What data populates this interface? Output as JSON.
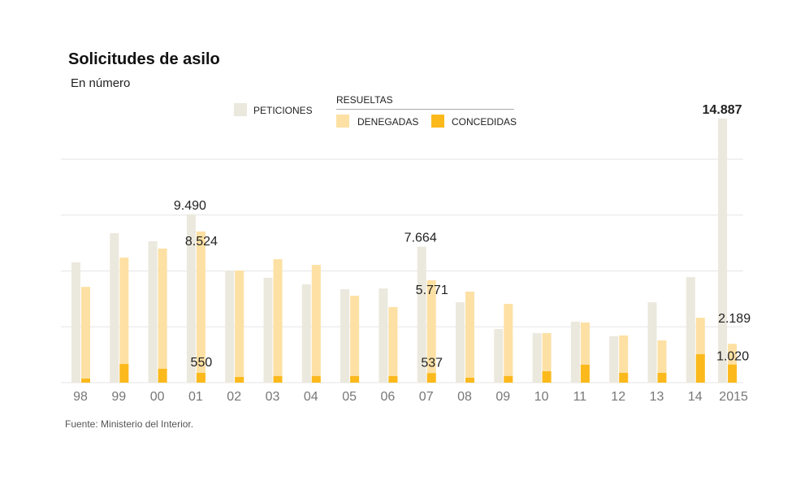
{
  "title": "Solicitudes de asilo",
  "subtitle": "En número",
  "source": "Fuente: Ministerio del Interior.",
  "legend": {
    "peticiones": "PETICIONES",
    "resueltas": "RESUELTAS",
    "denegadas": "DENEGADAS",
    "concedidas": "CONCEDIDAS"
  },
  "colors": {
    "peticiones": "#ebe8dd",
    "denegadas": "#fde0a3",
    "concedidas": "#fbb91c",
    "grid": "#e6e6e6"
  },
  "chart_data": {
    "type": "bar",
    "title": "Solicitudes de asilo",
    "subtitle": "En número",
    "ylim": [
      0,
      15000
    ],
    "grid": true,
    "gridlines": [
      3150,
      6300,
      9450,
      12600
    ],
    "legend_position": "top",
    "categories": [
      "98",
      "99",
      "00",
      "01",
      "02",
      "03",
      "04",
      "05",
      "06",
      "07",
      "08",
      "09",
      "10",
      "11",
      "12",
      "13",
      "14",
      "2015"
    ],
    "series": [
      {
        "name": "Peticiones",
        "values": [
          6780,
          8430,
          7970,
          9490,
          6320,
          5910,
          5540,
          5270,
          5310,
          7664,
          4530,
          3020,
          2790,
          3440,
          2610,
          4530,
          5950,
          14887
        ]
      },
      {
        "name": "Denegadas",
        "values": [
          5400,
          7050,
          7560,
          8524,
          6320,
          6960,
          6640,
          4900,
          4260,
          5771,
          5130,
          4440,
          2790,
          3390,
          2660,
          2380,
          3660,
          2189
        ]
      },
      {
        "name": "Concedidas",
        "values": [
          230,
          1050,
          780,
          550,
          320,
          370,
          370,
          370,
          370,
          537,
          275,
          370,
          640,
          1010,
          550,
          550,
          1600,
          1020
        ]
      }
    ],
    "data_labels": [
      {
        "category": "01",
        "series": "Peticiones",
        "text": "9.490"
      },
      {
        "category": "01",
        "series": "Denegadas",
        "text": "8.524"
      },
      {
        "category": "01",
        "series": "Concedidas",
        "text": "550"
      },
      {
        "category": "07",
        "series": "Peticiones",
        "text": "7.664"
      },
      {
        "category": "07",
        "series": "Denegadas",
        "text": "5.771"
      },
      {
        "category": "07",
        "series": "Concedidas",
        "text": "537"
      },
      {
        "category": "2015",
        "series": "Peticiones",
        "text": "14.887",
        "bold": true
      },
      {
        "category": "2015",
        "series": "Denegadas",
        "text": "2.189"
      },
      {
        "category": "2015",
        "series": "Concedidas",
        "text": "1.020"
      }
    ]
  }
}
